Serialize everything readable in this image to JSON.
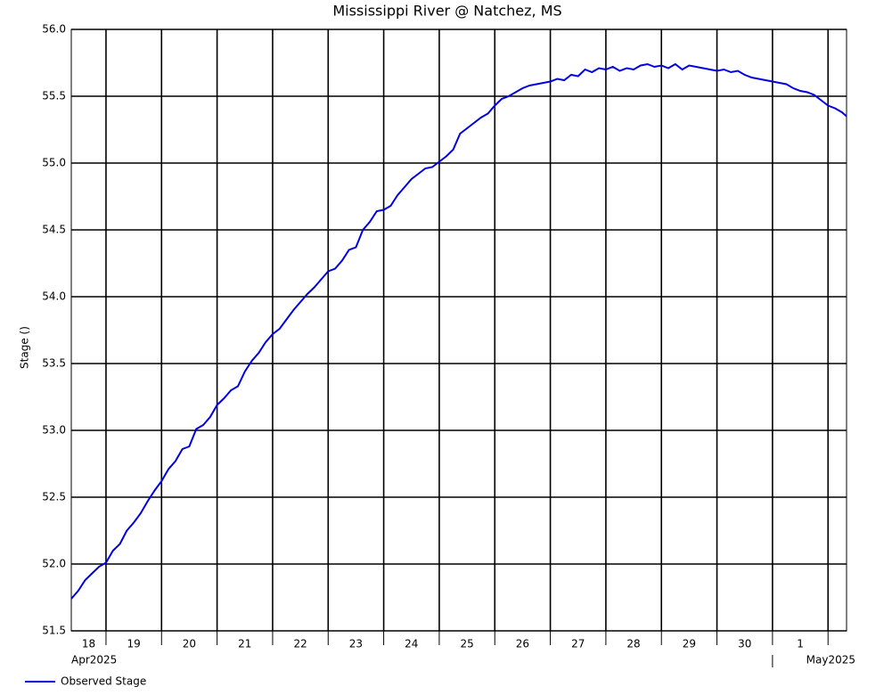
{
  "chart_data": {
    "type": "line",
    "title": "Mississippi River @ Natchez, MS",
    "y_label": "Stage ()",
    "grid": true,
    "legend": "bottom-left",
    "xlim": [
      "2025-04-18T09:00",
      "2025-05-02T08:00"
    ],
    "xticks": [
      {
        "value": "2025-04-18",
        "label": "18"
      },
      {
        "value": "2025-04-19",
        "label": "19"
      },
      {
        "value": "2025-04-20",
        "label": "20"
      },
      {
        "value": "2025-04-21",
        "label": "21"
      },
      {
        "value": "2025-04-22",
        "label": "22"
      },
      {
        "value": "2025-04-23",
        "label": "23"
      },
      {
        "value": "2025-04-24",
        "label": "24"
      },
      {
        "value": "2025-04-25",
        "label": "25"
      },
      {
        "value": "2025-04-26",
        "label": "26"
      },
      {
        "value": "2025-04-27",
        "label": "27"
      },
      {
        "value": "2025-04-28",
        "label": "28"
      },
      {
        "value": "2025-04-29",
        "label": "29"
      },
      {
        "value": "2025-04-30",
        "label": "30"
      },
      {
        "value": "2025-05-01",
        "label": "1"
      },
      {
        "value": "2025-05-02",
        "label": null
      }
    ],
    "month_labels": [
      {
        "value": "2025-04-18",
        "label": "Apr2025"
      },
      {
        "value": "2025-05-01",
        "label": "May2025"
      }
    ],
    "ylim": [
      51.5,
      56.0
    ],
    "yticks": [
      {
        "value": 51.5,
        "label": "51.5"
      },
      {
        "value": 52,
        "label": "52.0"
      },
      {
        "value": 52.5,
        "label": "52.5"
      },
      {
        "value": 53,
        "label": "53.0"
      },
      {
        "value": 53.5,
        "label": "53.5"
      },
      {
        "value": 54,
        "label": "54.0"
      },
      {
        "value": 54.5,
        "label": "54.5"
      },
      {
        "value": 55,
        "label": "55.0"
      },
      {
        "value": 55.5,
        "label": "55.5"
      },
      {
        "value": 56,
        "label": "56.0"
      }
    ],
    "x": [
      "2025-04-18T09:00",
      "2025-04-18T12:00",
      "2025-04-18T15:00",
      "2025-04-18T18:00",
      "2025-04-18T21:00",
      "2025-04-19T00:00",
      "2025-04-19T03:00",
      "2025-04-19T06:00",
      "2025-04-19T09:00",
      "2025-04-19T12:00",
      "2025-04-19T15:00",
      "2025-04-19T18:00",
      "2025-04-19T21:00",
      "2025-04-20T00:00",
      "2025-04-20T03:00",
      "2025-04-20T06:00",
      "2025-04-20T09:00",
      "2025-04-20T12:00",
      "2025-04-20T15:00",
      "2025-04-20T18:00",
      "2025-04-20T21:00",
      "2025-04-21T00:00",
      "2025-04-21T03:00",
      "2025-04-21T06:00",
      "2025-04-21T09:00",
      "2025-04-21T12:00",
      "2025-04-21T15:00",
      "2025-04-21T18:00",
      "2025-04-21T21:00",
      "2025-04-22T00:00",
      "2025-04-22T03:00",
      "2025-04-22T06:00",
      "2025-04-22T09:00",
      "2025-04-22T12:00",
      "2025-04-22T15:00",
      "2025-04-22T18:00",
      "2025-04-22T21:00",
      "2025-04-23T00:00",
      "2025-04-23T03:00",
      "2025-04-23T06:00",
      "2025-04-23T09:00",
      "2025-04-23T12:00",
      "2025-04-23T15:00",
      "2025-04-23T18:00",
      "2025-04-23T21:00",
      "2025-04-24T00:00",
      "2025-04-24T03:00",
      "2025-04-24T06:00",
      "2025-04-24T09:00",
      "2025-04-24T12:00",
      "2025-04-24T15:00",
      "2025-04-24T18:00",
      "2025-04-24T21:00",
      "2025-04-25T00:00",
      "2025-04-25T03:00",
      "2025-04-25T06:00",
      "2025-04-25T09:00",
      "2025-04-25T12:00",
      "2025-04-25T15:00",
      "2025-04-25T18:00",
      "2025-04-25T21:00",
      "2025-04-26T00:00",
      "2025-04-26T03:00",
      "2025-04-26T06:00",
      "2025-04-26T09:00",
      "2025-04-26T12:00",
      "2025-04-26T15:00",
      "2025-04-26T18:00",
      "2025-04-26T21:00",
      "2025-04-27T00:00",
      "2025-04-27T03:00",
      "2025-04-27T06:00",
      "2025-04-27T09:00",
      "2025-04-27T12:00",
      "2025-04-27T15:00",
      "2025-04-27T18:00",
      "2025-04-27T21:00",
      "2025-04-28T00:00",
      "2025-04-28T03:00",
      "2025-04-28T06:00",
      "2025-04-28T09:00",
      "2025-04-28T12:00",
      "2025-04-28T15:00",
      "2025-04-28T18:00",
      "2025-04-28T21:00",
      "2025-04-29T00:00",
      "2025-04-29T03:00",
      "2025-04-29T06:00",
      "2025-04-29T09:00",
      "2025-04-29T12:00",
      "2025-04-29T15:00",
      "2025-04-29T18:00",
      "2025-04-29T21:00",
      "2025-04-30T00:00",
      "2025-04-30T03:00",
      "2025-04-30T06:00",
      "2025-04-30T09:00",
      "2025-04-30T12:00",
      "2025-04-30T15:00",
      "2025-04-30T18:00",
      "2025-04-30T21:00",
      "2025-05-01T00:00",
      "2025-05-01T03:00",
      "2025-05-01T06:00",
      "2025-05-01T09:00",
      "2025-05-01T12:00",
      "2025-05-01T15:00",
      "2025-05-01T18:00",
      "2025-05-01T21:00",
      "2025-05-02T00:00",
      "2025-05-02T03:00",
      "2025-05-02T06:00",
      "2025-05-02T08:00"
    ],
    "series": [
      {
        "name": "Observed Stage",
        "color": "#0000e0",
        "values": [
          51.74,
          51.8,
          51.88,
          51.93,
          51.98,
          52.01,
          52.1,
          52.15,
          52.25,
          52.31,
          52.38,
          52.47,
          52.55,
          52.62,
          52.71,
          52.77,
          52.86,
          52.88,
          53.01,
          53.04,
          53.1,
          53.19,
          53.24,
          53.3,
          53.33,
          53.44,
          53.52,
          53.58,
          53.66,
          53.72,
          53.76,
          53.83,
          53.9,
          53.96,
          54.02,
          54.07,
          54.13,
          54.19,
          54.21,
          54.27,
          54.35,
          54.37,
          54.5,
          54.56,
          54.64,
          54.65,
          54.68,
          54.76,
          54.82,
          54.88,
          54.92,
          54.96,
          54.97,
          55.01,
          55.05,
          55.1,
          55.22,
          55.26,
          55.3,
          55.34,
          55.37,
          55.43,
          55.48,
          55.5,
          55.53,
          55.56,
          55.58,
          55.59,
          55.6,
          55.61,
          55.63,
          55.62,
          55.66,
          55.65,
          55.7,
          55.68,
          55.71,
          55.7,
          55.72,
          55.69,
          55.71,
          55.7,
          55.73,
          55.74,
          55.72,
          55.73,
          55.71,
          55.74,
          55.7,
          55.73,
          55.72,
          55.71,
          55.7,
          55.69,
          55.7,
          55.68,
          55.69,
          55.66,
          55.64,
          55.63,
          55.62,
          55.61,
          55.6,
          55.59,
          55.56,
          55.54,
          55.53,
          55.51,
          55.47,
          55.43,
          55.41,
          55.38,
          55.35
        ]
      }
    ]
  }
}
